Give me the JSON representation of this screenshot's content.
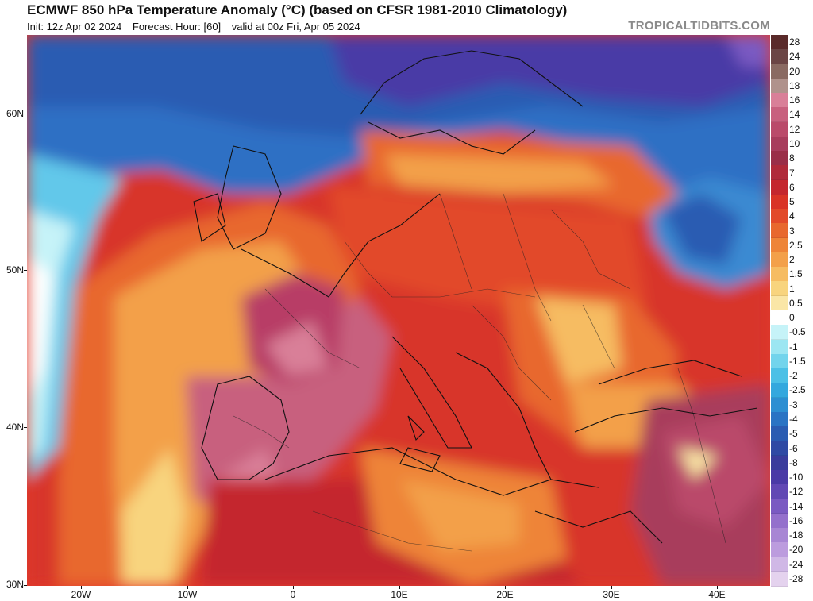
{
  "header": {
    "title": "ECMWF 850 hPa Temperature Anomaly (°C) (based on CFSR 1981-2010 Climatology)",
    "init": "Init: 12z Apr 02 2024",
    "forecast_hour": "Forecast Hour: [60]",
    "valid": "valid at 00z Fri, Apr 05 2024",
    "brand": "TROPICALTIDBITS.COM"
  },
  "axes": {
    "lat_labels": [
      "60N",
      "50N",
      "40N",
      "30N"
    ],
    "lon_labels": [
      "20W",
      "10W",
      "0",
      "10E",
      "20E",
      "30E",
      "40E"
    ]
  },
  "colorbar": {
    "labels": [
      "28",
      "24",
      "20",
      "18",
      "16",
      "14",
      "12",
      "10",
      "8",
      "7",
      "6",
      "5",
      "4",
      "3",
      "2.5",
      "2",
      "1.5",
      "1",
      "0.5",
      "0",
      "-0.5",
      "-1",
      "-1.5",
      "-2",
      "-2.5",
      "-3",
      "-4",
      "-5",
      "-6",
      "-8",
      "-10",
      "-12",
      "-14",
      "-16",
      "-18",
      "-20",
      "-24",
      "-28"
    ],
    "colors": [
      "#5a2a2a",
      "#6b4545",
      "#8a6a62",
      "#b0928c",
      "#d97f98",
      "#c8607e",
      "#ba4a6a",
      "#a83c5c",
      "#9a2e48",
      "#b02a3a",
      "#c4262e",
      "#d93326",
      "#e24a2a",
      "#e8682e",
      "#ee8438",
      "#f3a04a",
      "#f6bc62",
      "#f8d47e",
      "#fae6a6",
      "#ffffff",
      "#c6f3f8",
      "#9ce6f2",
      "#72d4ec",
      "#4cc0e6",
      "#34a8de",
      "#2d8fd2",
      "#2a74c4",
      "#2a5cb2",
      "#2f4aa4",
      "#3a3c9c",
      "#4a3aa6",
      "#6148b4",
      "#7a5ac2",
      "#9470cc",
      "#a886d4",
      "#bc9cde",
      "#d0b8e6",
      "#e4d2ee"
    ]
  }
}
